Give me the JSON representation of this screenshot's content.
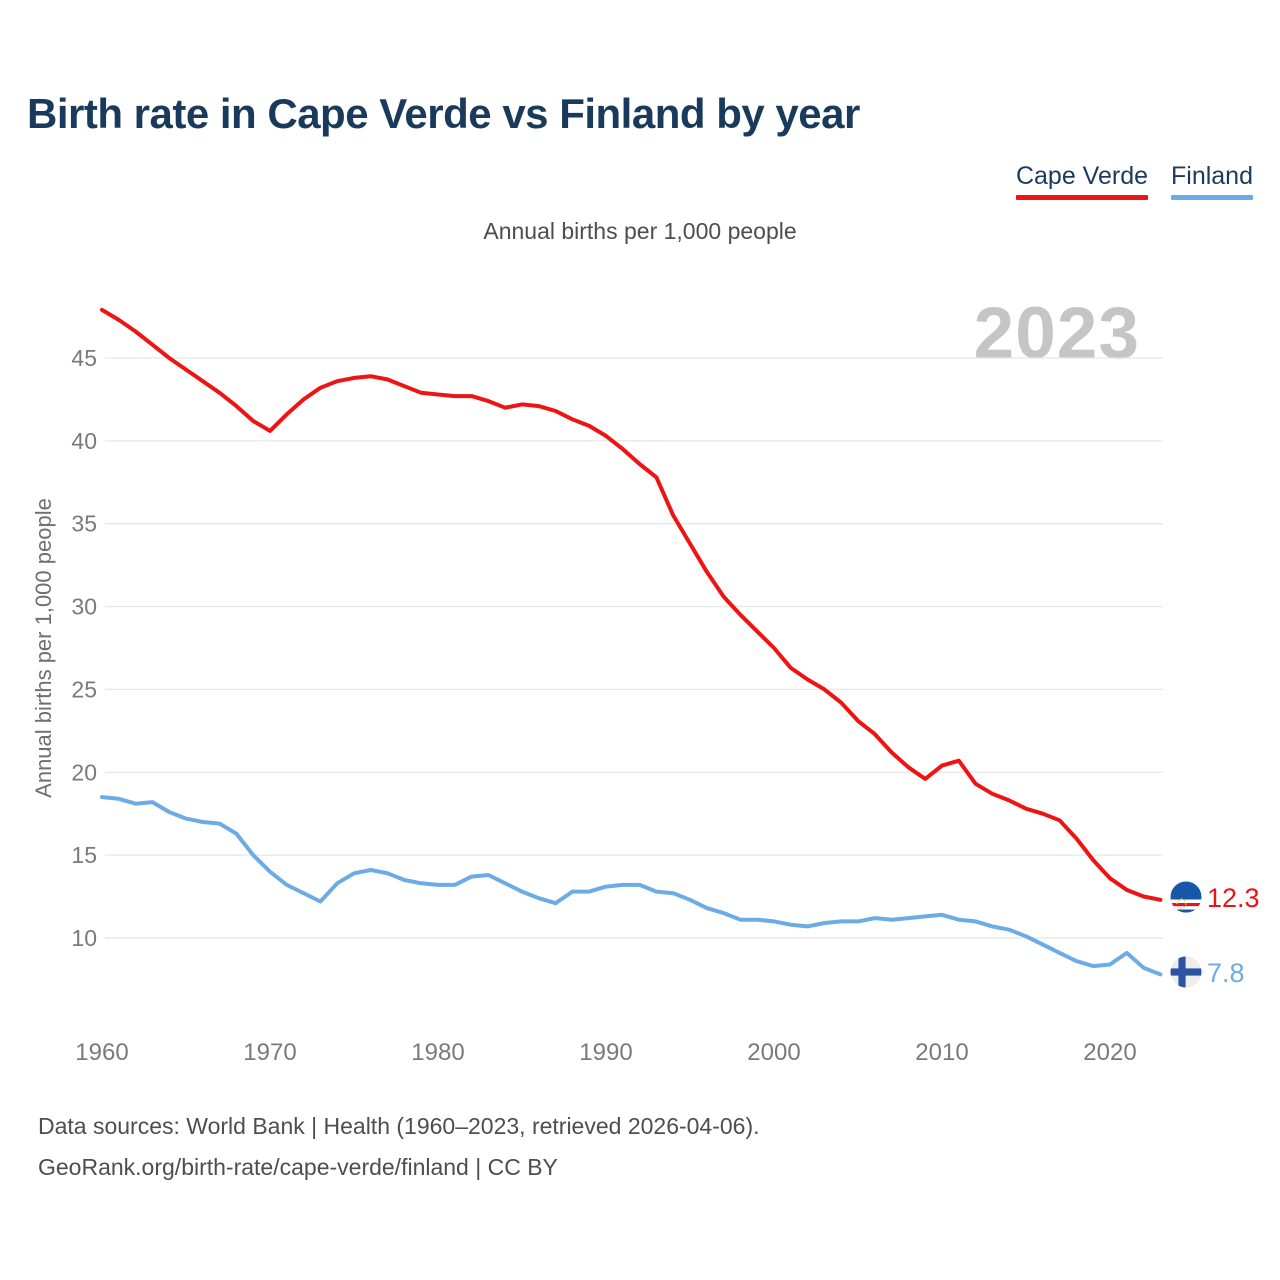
{
  "title": "Birth rate in Cape Verde vs Finland by year",
  "subtitle": "Annual births per 1,000 people",
  "watermark": "2023",
  "y_axis_title": "Annual births per 1,000 people",
  "legend": [
    {
      "label": "Cape Verde",
      "color": "#ee1414"
    },
    {
      "label": "Finland",
      "color": "#6cabe4"
    }
  ],
  "end_labels": [
    {
      "series": "Cape Verde",
      "value": "12.3"
    },
    {
      "series": "Finland",
      "value": "7.8"
    }
  ],
  "footer": {
    "line1": "Data sources: World Bank | Health (1960–2023, retrieved 2026-04-06).",
    "line2": "GeoRank.org/birth-rate/cape-verde/finland | CC BY"
  },
  "colors": {
    "cape_verde_line": "#ee1414",
    "finland_line": "#6cabe4",
    "grid": "#e7e7e7",
    "tick_text": "#7a7a7a",
    "title_text": "#1a3a5c"
  },
  "chart_data": {
    "type": "line",
    "title": "Birth rate in Cape Verde vs Finland by year",
    "subtitle": "Annual births per 1,000 people",
    "xlabel": "",
    "ylabel": "Annual births per 1,000 people",
    "x": [
      1960,
      1961,
      1962,
      1963,
      1964,
      1965,
      1966,
      1967,
      1968,
      1969,
      1970,
      1971,
      1972,
      1973,
      1974,
      1975,
      1976,
      1977,
      1978,
      1979,
      1980,
      1981,
      1982,
      1983,
      1984,
      1985,
      1986,
      1987,
      1988,
      1989,
      1990,
      1991,
      1992,
      1993,
      1994,
      1995,
      1996,
      1997,
      1998,
      1999,
      2000,
      2001,
      2002,
      2003,
      2004,
      2005,
      2006,
      2007,
      2008,
      2009,
      2010,
      2011,
      2012,
      2013,
      2014,
      2015,
      2016,
      2017,
      2018,
      2019,
      2020,
      2021,
      2022,
      2023
    ],
    "series": [
      {
        "name": "Cape Verde",
        "color": "#ee1414",
        "values": [
          47.9,
          47.3,
          46.6,
          45.8,
          45.0,
          44.3,
          43.6,
          42.9,
          42.1,
          41.2,
          40.6,
          41.6,
          42.5,
          43.2,
          43.6,
          43.8,
          43.9,
          43.7,
          43.3,
          42.9,
          42.8,
          42.7,
          42.7,
          42.4,
          42.0,
          42.2,
          42.1,
          41.8,
          41.3,
          40.9,
          40.3,
          39.5,
          38.6,
          37.8,
          35.5,
          33.8,
          32.1,
          30.6,
          29.5,
          28.5,
          27.5,
          26.3,
          25.6,
          25.0,
          24.2,
          23.1,
          22.3,
          21.2,
          20.3,
          19.6,
          20.4,
          20.7,
          19.3,
          18.7,
          18.3,
          17.8,
          17.5,
          17.1,
          16.0,
          14.7,
          13.6,
          12.9,
          12.5,
          12.3
        ]
      },
      {
        "name": "Finland",
        "color": "#6cabe4",
        "values": [
          18.5,
          18.4,
          18.1,
          18.2,
          17.6,
          17.2,
          17.0,
          16.9,
          16.3,
          15.0,
          14.0,
          13.2,
          12.7,
          12.2,
          13.3,
          13.9,
          14.1,
          13.9,
          13.5,
          13.3,
          13.2,
          13.2,
          13.7,
          13.8,
          13.3,
          12.8,
          12.4,
          12.1,
          12.8,
          12.8,
          13.1,
          13.2,
          13.2,
          12.8,
          12.7,
          12.3,
          11.8,
          11.5,
          11.1,
          11.1,
          11.0,
          10.8,
          10.7,
          10.9,
          11.0,
          11.0,
          11.2,
          11.1,
          11.2,
          11.3,
          11.4,
          11.1,
          11.0,
          10.7,
          10.5,
          10.1,
          9.6,
          9.1,
          8.6,
          8.3,
          8.4,
          9.1,
          8.2,
          7.8
        ]
      }
    ],
    "yticks": [
      10,
      15,
      20,
      25,
      30,
      35,
      40,
      45
    ],
    "xticks": [
      1960,
      1970,
      1980,
      1990,
      2000,
      2010,
      2020
    ],
    "ylim": [
      6.5,
      48.5
    ],
    "grid": "horizontal",
    "legend_position": "top-right",
    "end_value_labels": {
      "Cape Verde": 12.3,
      "Finland": 7.8
    }
  }
}
